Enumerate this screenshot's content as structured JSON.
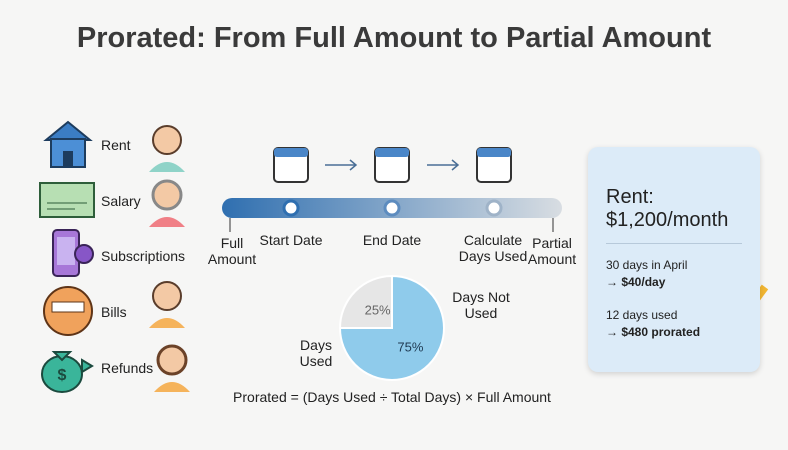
{
  "title": "Prorated: From Full Amount to Partial Amount",
  "items": [
    "Rent",
    "Salary",
    "Subscriptions",
    "Bills",
    "Refunds"
  ],
  "timeline": {
    "labels": [
      "Full Amount",
      "Start Date",
      "End Date",
      "Calculate Days Used",
      "Partial Amount"
    ]
  },
  "pie": {
    "names": [
      "Days Used",
      "Days Not Used"
    ],
    "values": [
      75,
      25
    ],
    "value_labels": [
      "75%",
      "25%"
    ],
    "colors": [
      "#8fcbeb",
      "#e6e6e6"
    ]
  },
  "formula": "Prorated = (Days Used ÷ Total Days) × Full Amount",
  "card": {
    "heading": "Rent:",
    "amount": "$1,200/month",
    "line1": "30 days in April",
    "line1_result": "→ $40/day",
    "line2": "12 days used",
    "line2_result": "→ $480 prorated"
  }
}
